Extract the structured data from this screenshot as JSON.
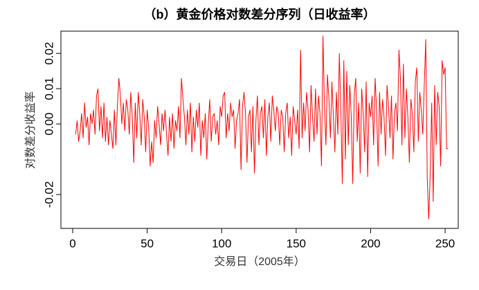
{
  "chart_data": {
    "type": "line",
    "title": "（b）黄金价格对数差分序列（日收益率）",
    "x_label": "交易日（2005年）",
    "y_label": "对数差分收益率",
    "color": "#ff0000",
    "xlim": [
      -7.9,
      258.8
    ],
    "ylim": [
      -0.0296,
      0.0263
    ],
    "xticks": [
      0,
      50,
      100,
      150,
      200,
      250
    ],
    "yticks": [
      -0.02,
      {
        "value": 0,
        "label": "0.00"
      },
      0.01,
      0.02
    ],
    "x": [
      2,
      3,
      4,
      5,
      6,
      7,
      8,
      9,
      10,
      11,
      12,
      13,
      14,
      15,
      16,
      17,
      18,
      19,
      20,
      21,
      22,
      23,
      24,
      25,
      26,
      27,
      28,
      29,
      30,
      31,
      32,
      33,
      34,
      35,
      36,
      37,
      38,
      39,
      40,
      41,
      42,
      43,
      44,
      45,
      46,
      47,
      48,
      49,
      50,
      51,
      52,
      53,
      54,
      55,
      56,
      57,
      58,
      59,
      60,
      61,
      62,
      63,
      64,
      65,
      66,
      67,
      68,
      69,
      70,
      71,
      72,
      73,
      74,
      75,
      76,
      77,
      78,
      79,
      80,
      81,
      82,
      83,
      84,
      85,
      86,
      87,
      88,
      89,
      90,
      91,
      92,
      93,
      94,
      95,
      96,
      97,
      98,
      99,
      100,
      101,
      102,
      103,
      104,
      105,
      106,
      107,
      108,
      109,
      110,
      111,
      112,
      113,
      114,
      115,
      116,
      117,
      118,
      119,
      120,
      121,
      122,
      123,
      124,
      125,
      126,
      127,
      128,
      129,
      130,
      131,
      132,
      133,
      134,
      135,
      136,
      137,
      138,
      139,
      140,
      141,
      142,
      143,
      144,
      145,
      146,
      147,
      148,
      149,
      150,
      151,
      152,
      153,
      154,
      155,
      156,
      157,
      158,
      159,
      160,
      161,
      162,
      163,
      164,
      165,
      166,
      167,
      168,
      169,
      170,
      171,
      172,
      173,
      174,
      175,
      176,
      177,
      178,
      179,
      180,
      181,
      182,
      183,
      184,
      185,
      186,
      187,
      188,
      189,
      190,
      191,
      192,
      193,
      194,
      195,
      196,
      197,
      198,
      199,
      200,
      201,
      202,
      203,
      204,
      205,
      206,
      207,
      208,
      209,
      210,
      211,
      212,
      213,
      214,
      215,
      216,
      217,
      218,
      219,
      220,
      221,
      222,
      223,
      224,
      225,
      226,
      227,
      228,
      229,
      230,
      231,
      232,
      233,
      234,
      235,
      236,
      237,
      238,
      239,
      240,
      241,
      242,
      243,
      244,
      245,
      246,
      247,
      248,
      249,
      250,
      251,
      252
    ],
    "values": [
      -0.003,
      0.001,
      -0.005,
      -0.002,
      0.003,
      -0.004,
      0.006,
      -0.001,
      0.002,
      -0.006,
      0.003,
      0.0,
      0.004,
      -0.003,
      0.008,
      0.01,
      -0.002,
      0.005,
      -0.004,
      0.006,
      -0.005,
      0.002,
      -0.006,
      0.001,
      -0.003,
      -0.007,
      0.004,
      -0.006,
      0.005,
      0.013,
      0.008,
      0.0,
      0.006,
      -0.002,
      0.007,
      0.004,
      -0.003,
      0.009,
      0.002,
      -0.011,
      0.006,
      -0.004,
      0.009,
      0.003,
      -0.006,
      0.007,
      0.002,
      -0.008,
      0.004,
      -0.001,
      -0.012,
      -0.005,
      -0.011,
      0.001,
      -0.004,
      0.005,
      0.0,
      -0.006,
      0.003,
      -0.002,
      0.004,
      -0.003,
      -0.009,
      0.002,
      -0.005,
      0.003,
      -0.007,
      0.001,
      -0.002,
      0.005,
      -0.004,
      0.013,
      0.007,
      0.002,
      -0.006,
      0.004,
      -0.003,
      0.006,
      -0.008,
      0.002,
      -0.005,
      0.004,
      -0.001,
      0.006,
      -0.009,
      0.001,
      -0.004,
      0.003,
      -0.01,
      0.0,
      0.007,
      -0.005,
      0.002,
      0.003,
      -0.003,
      0.001,
      -0.006,
      0.005,
      0.002,
      0.008,
      0.009,
      -0.004,
      0.003,
      -0.002,
      0.006,
      0.002,
      0.004,
      -0.007,
      0.001,
      0.003,
      0.007,
      -0.013,
      0.005,
      0.009,
      0.003,
      -0.011,
      0.002,
      0.004,
      -0.008,
      0.005,
      -0.014,
      0.001,
      0.008,
      -0.006,
      0.003,
      0.005,
      -0.004,
      0.007,
      -0.009,
      0.002,
      0.006,
      -0.005,
      0.008,
      0.004,
      -0.002,
      0.005,
      0.003,
      -0.006,
      0.004,
      0.002,
      -0.008,
      0.003,
      0.006,
      -0.004,
      0.002,
      -0.009,
      0.005,
      0.001,
      -0.003,
      0.004,
      -0.007,
      0.021,
      -0.004,
      0.006,
      -0.002,
      0.009,
      0.004,
      -0.008,
      0.011,
      0.002,
      -0.005,
      0.01,
      -0.003,
      0.008,
      0.003,
      -0.012,
      0.025,
      0.005,
      -0.006,
      0.014,
      0.007,
      -0.004,
      0.012,
      0.002,
      -0.008,
      0.009,
      -0.003,
      0.02,
      0.004,
      -0.017,
      0.018,
      -0.01,
      0.015,
      -0.006,
      0.011,
      0.002,
      -0.017,
      0.008,
      0.013,
      -0.005,
      0.006,
      -0.014,
      0.01,
      0.003,
      -0.008,
      0.012,
      -0.015,
      0.006,
      0.002,
      0.008,
      -0.006,
      0.013,
      0.004,
      -0.012,
      0.009,
      -0.003,
      0.007,
      0.002,
      -0.009,
      0.011,
      0.005,
      -0.004,
      0.008,
      -0.01,
      0.003,
      0.006,
      -0.002,
      0.021,
      0.013,
      -0.006,
      0.017,
      -0.004,
      0.01,
      0.002,
      -0.011,
      0.007,
      0.003,
      -0.008,
      0.012,
      0.016,
      -0.005,
      0.009,
      0.004,
      -0.003,
      0.011,
      0.024,
      -0.015,
      -0.027,
      -0.014,
      0.006,
      -0.022,
      0.011,
      -0.006,
      0.009,
      0.005,
      -0.012,
      0.018,
      0.014,
      0.016,
      -0.007,
      -0.007
    ]
  }
}
